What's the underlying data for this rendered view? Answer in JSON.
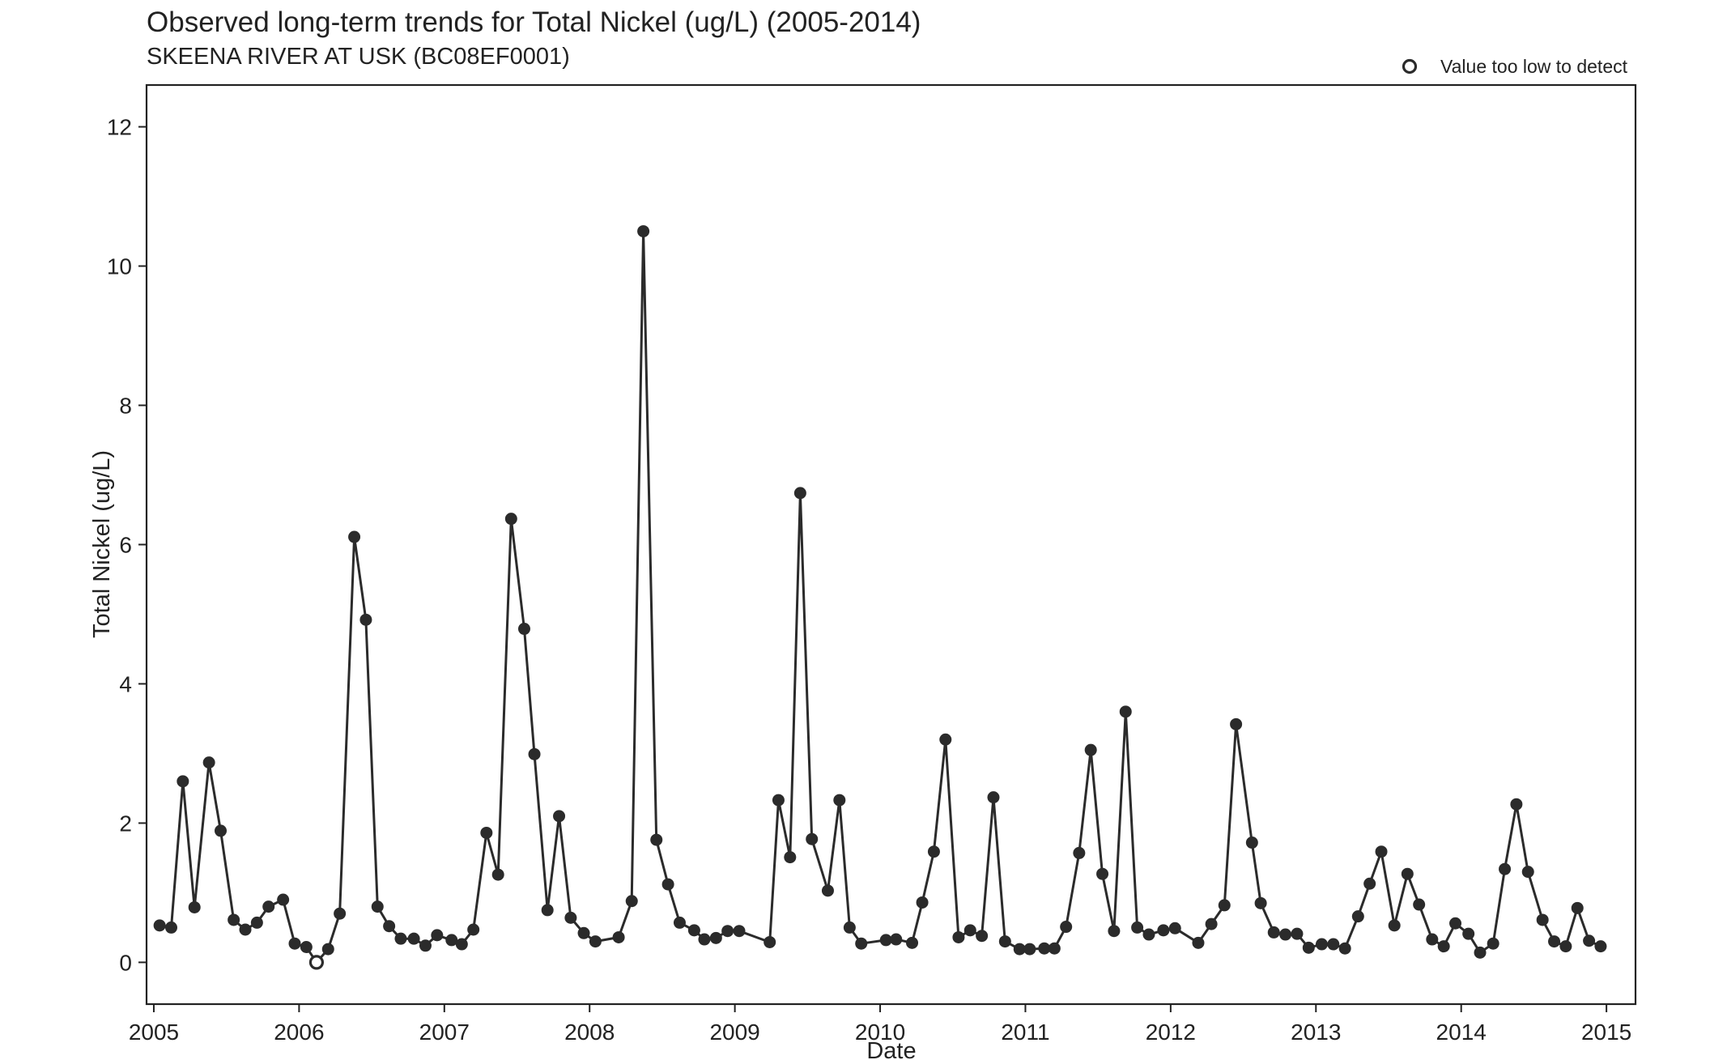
{
  "chart_data": {
    "type": "line",
    "title": "Observed long-term trends for Total Nickel (ug/L) (2005-2014)",
    "subtitle": "SKEENA RIVER AT USK (BC08EF0001)",
    "xlabel": "Date",
    "ylabel": "Total Nickel (ug/L)",
    "xlim": [
      2004.95,
      2015.2
    ],
    "ylim": [
      -0.6,
      12.6
    ],
    "x_ticks": [
      2005,
      2006,
      2007,
      2008,
      2009,
      2010,
      2011,
      2012,
      2013,
      2014,
      2015
    ],
    "y_ticks": [
      0,
      2,
      4,
      6,
      8,
      10,
      12
    ],
    "grid": false,
    "legend": {
      "position": "top-right",
      "entries": [
        {
          "label": "Value too low to detect",
          "marker": "open-circle"
        }
      ]
    },
    "colors": {
      "line": "#2b2b2b",
      "point": "#2b2b2b",
      "frame": "#222222"
    },
    "series": [
      {
        "x": [
          2005.04,
          2005.12,
          2005.2,
          2005.28,
          2005.38,
          2005.46,
          2005.55,
          2005.63,
          2005.71,
          2005.79,
          2005.89,
          2005.97,
          2006.05,
          2006.12,
          2006.2,
          2006.28,
          2006.38,
          2006.46,
          2006.54,
          2006.62,
          2006.7,
          2006.79,
          2006.87,
          2006.95,
          2007.05,
          2007.12,
          2007.2,
          2007.29,
          2007.37,
          2007.46,
          2007.55,
          2007.62,
          2007.71,
          2007.79,
          2007.87,
          2007.96,
          2008.04,
          2008.2,
          2008.29,
          2008.37,
          2008.46,
          2008.54,
          2008.62,
          2008.72,
          2008.79,
          2008.87,
          2008.95,
          2009.03,
          2009.24,
          2009.3,
          2009.38,
          2009.45,
          2009.53,
          2009.64,
          2009.72,
          2009.79,
          2009.87,
          2010.04,
          2010.11,
          2010.22,
          2010.29,
          2010.37,
          2010.45,
          2010.54,
          2010.62,
          2010.7,
          2010.78,
          2010.86,
          2010.96,
          2011.03,
          2011.13,
          2011.2,
          2011.28,
          2011.37,
          2011.45,
          2011.53,
          2011.61,
          2011.69,
          2011.77,
          2011.85,
          2011.95,
          2012.03,
          2012.19,
          2012.28,
          2012.37,
          2012.45,
          2012.56,
          2012.62,
          2012.71,
          2012.79,
          2012.87,
          2012.95,
          2013.04,
          2013.12,
          2013.2,
          2013.29,
          2013.37,
          2013.45,
          2013.54,
          2013.63,
          2013.71,
          2013.8,
          2013.88,
          2013.96,
          2014.05,
          2014.13,
          2014.22,
          2014.3,
          2014.38,
          2014.46,
          2014.56,
          2014.64,
          2014.72,
          2014.8,
          2014.88,
          2014.96
        ],
        "y": [
          0.53,
          0.5,
          2.6,
          0.79,
          2.87,
          1.89,
          0.61,
          0.47,
          0.57,
          0.8,
          0.9,
          0.27,
          0.22,
          0.0,
          0.19,
          0.7,
          6.11,
          4.92,
          0.8,
          0.52,
          0.34,
          0.34,
          0.24,
          0.39,
          0.32,
          0.26,
          0.47,
          1.86,
          1.26,
          6.37,
          4.79,
          2.99,
          0.75,
          2.1,
          0.64,
          0.42,
          0.3,
          0.36,
          0.88,
          10.5,
          1.76,
          1.12,
          0.57,
          0.46,
          0.33,
          0.35,
          0.45,
          0.45,
          0.29,
          2.33,
          1.51,
          6.74,
          1.77,
          1.03,
          2.33,
          0.5,
          0.27,
          0.32,
          0.33,
          0.28,
          0.86,
          1.59,
          3.2,
          0.36,
          0.46,
          0.38,
          2.37,
          0.3,
          0.19,
          0.19,
          0.2,
          0.2,
          0.51,
          1.57,
          3.05,
          1.27,
          0.45,
          3.6,
          0.5,
          0.4,
          0.46,
          0.49,
          0.28,
          0.55,
          0.82,
          3.42,
          1.72,
          0.85,
          0.43,
          0.4,
          0.41,
          0.21,
          0.26,
          0.26,
          0.2,
          0.66,
          1.13,
          1.59,
          0.53,
          1.27,
          0.83,
          0.33,
          0.23,
          0.56,
          0.41,
          0.14,
          0.27,
          1.34,
          2.27,
          1.3,
          0.61,
          0.3,
          0.23,
          0.78,
          0.31,
          0.23
        ],
        "below_detection_index": [
          13
        ]
      }
    ]
  }
}
